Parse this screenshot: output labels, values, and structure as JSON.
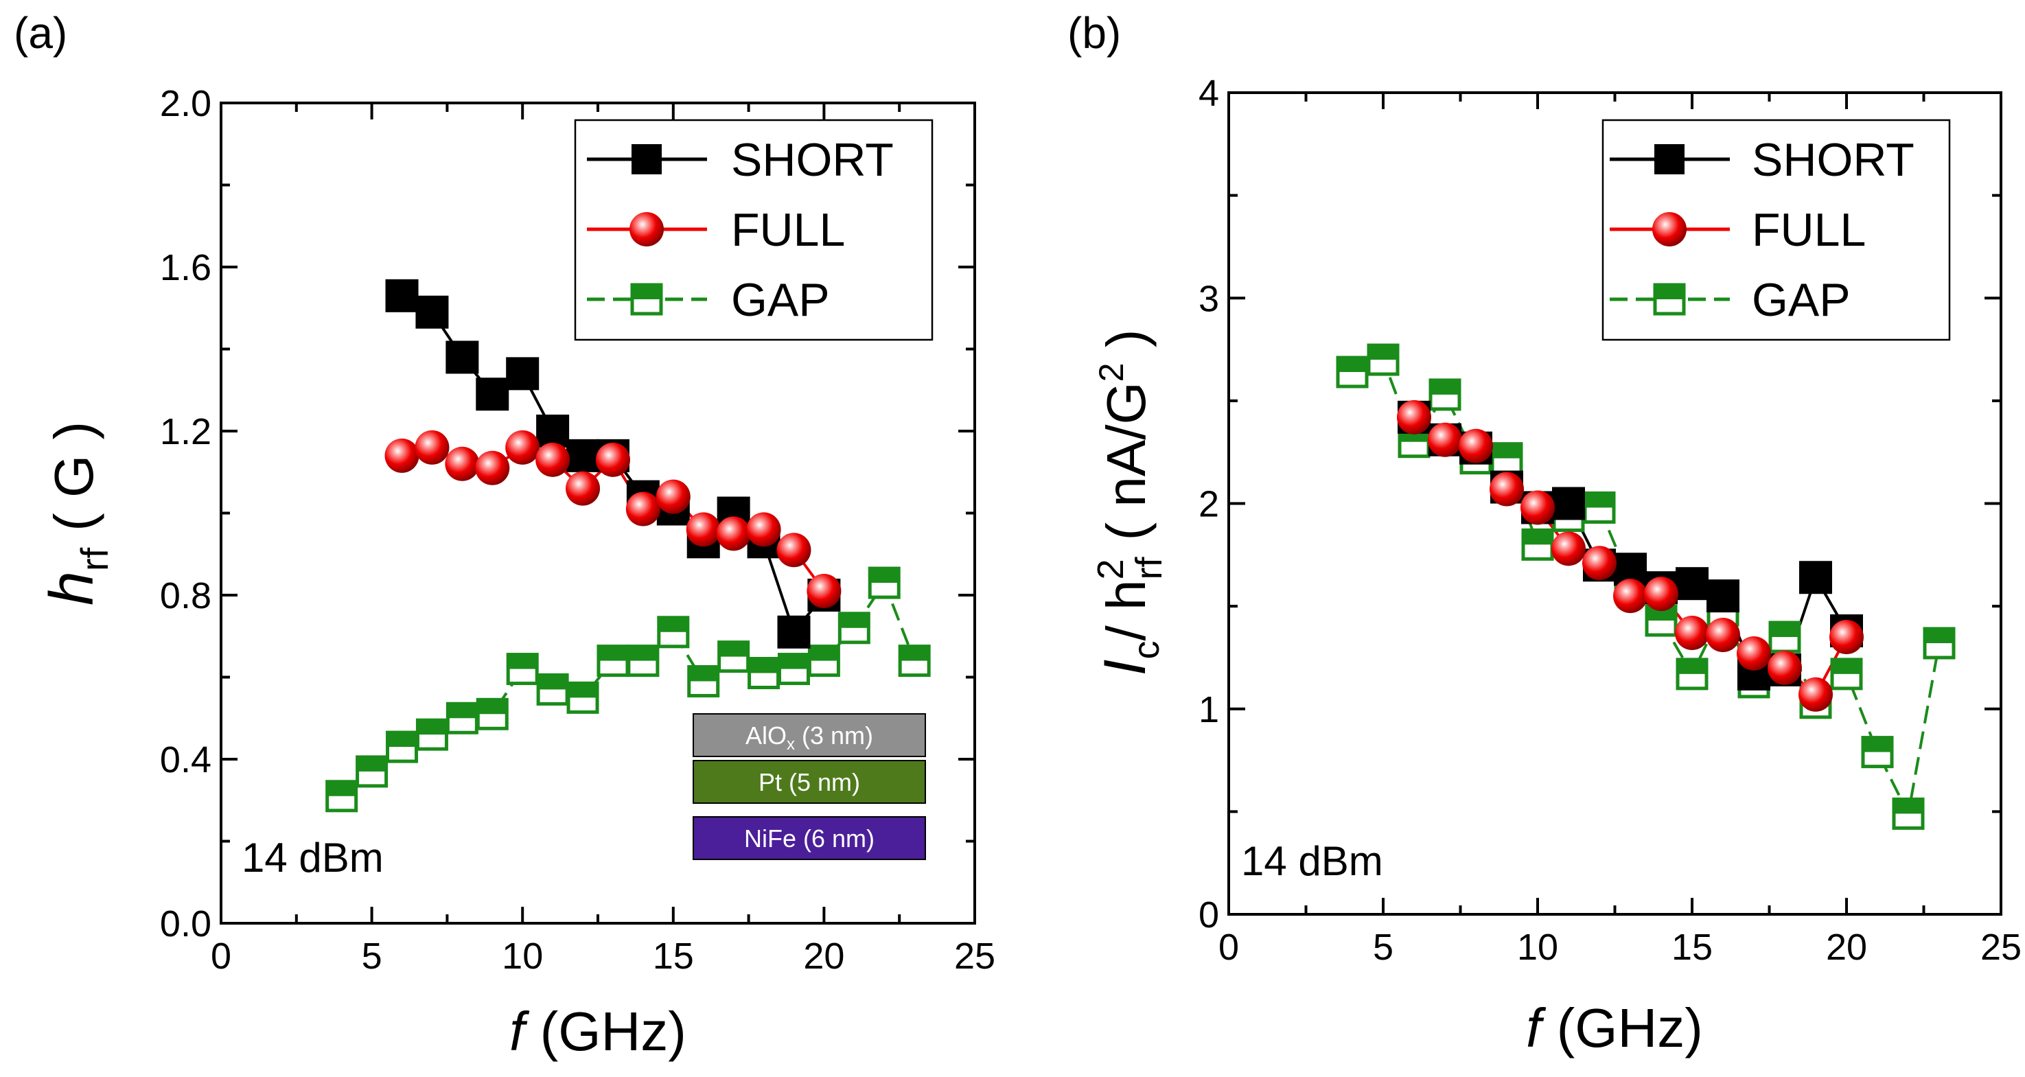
{
  "colors": {
    "short": "#000000",
    "full": "#ee0000",
    "gap": "#1a8c1a",
    "layer_alox": "#8f8f8f",
    "layer_pt": "#4e7a1c",
    "layer_nife": "#4b1f99"
  },
  "chart_data": [
    {
      "type": "scatter",
      "panel_label": "(a)",
      "xlabel": "f",
      "xlabel_unit": " (GHz)",
      "ylabel_main": "h",
      "ylabel_sub": "rf",
      "ylabel_unit": "( G )",
      "xlim": [
        0,
        25
      ],
      "ylim": [
        0,
        2.0
      ],
      "x_ticks": [
        0,
        5,
        10,
        15,
        20,
        25
      ],
      "x_tick_labels": [
        "0",
        "5",
        "10",
        "15",
        "20",
        "25"
      ],
      "y_ticks": [
        0,
        0.4,
        0.8,
        1.2,
        1.6,
        2.0
      ],
      "y_tick_labels": [
        "0.0",
        "0.4",
        "0.8",
        "1.2",
        "1.6",
        "2.0"
      ],
      "power_label": "14 dBm",
      "legend_position": "top-right",
      "layer_stack": [
        {
          "main": "AlO",
          "sub": "x",
          "rest": " (3 nm)",
          "color_key": "layer_alox"
        },
        {
          "main": "Pt (5 nm)",
          "sub": "",
          "rest": "",
          "color_key": "layer_pt"
        },
        {
          "main": "NiFe (6 nm)",
          "sub": "",
          "rest": "",
          "color_key": "layer_nife"
        }
      ],
      "series": [
        {
          "name": "SHORT",
          "key": "short",
          "x": [
            6,
            7,
            8,
            9,
            10,
            11,
            12,
            13,
            14,
            15,
            16,
            17,
            18,
            19,
            20
          ],
          "y": [
            1.53,
            1.49,
            1.38,
            1.29,
            1.34,
            1.2,
            1.14,
            1.14,
            1.04,
            1.01,
            0.93,
            1.0,
            0.93,
            0.71,
            0.8
          ]
        },
        {
          "name": "FULL",
          "key": "full",
          "x": [
            6,
            7,
            8,
            9,
            10,
            11,
            12,
            13,
            14,
            15,
            16,
            17,
            18,
            19,
            20
          ],
          "y": [
            1.14,
            1.16,
            1.12,
            1.11,
            1.16,
            1.13,
            1.06,
            1.13,
            1.01,
            1.04,
            0.96,
            0.95,
            0.96,
            0.91,
            0.81
          ]
        },
        {
          "name": "GAP",
          "key": "gap",
          "x": [
            4,
            5,
            6,
            7,
            8,
            9,
            10,
            11,
            12,
            13,
            14,
            15,
            16,
            17,
            18,
            19,
            20,
            21,
            22,
            23
          ],
          "y": [
            0.31,
            0.37,
            0.43,
            0.46,
            0.5,
            0.51,
            0.62,
            0.57,
            0.55,
            0.64,
            0.64,
            0.71,
            0.59,
            0.65,
            0.61,
            0.62,
            0.64,
            0.72,
            0.83,
            0.64
          ]
        }
      ]
    },
    {
      "type": "scatter",
      "panel_label": "(b)",
      "xlabel": "f",
      "xlabel_unit": " (GHz)",
      "ylabel_main": "I",
      "ylabel_sub": "c",
      "ylabel_mid": "/ h",
      "ylabel_sup2": "2",
      "ylabel_sub2": "rf",
      "ylabel_unit": "( nA/G",
      "ylabel_unit_sup": "2",
      "ylabel_unit_end": " )",
      "xlim": [
        0,
        25
      ],
      "ylim": [
        0,
        4
      ],
      "x_ticks": [
        0,
        5,
        10,
        15,
        20,
        25
      ],
      "x_tick_labels": [
        "0",
        "5",
        "10",
        "15",
        "20",
        "25"
      ],
      "y_ticks": [
        0,
        1,
        2,
        3,
        4
      ],
      "y_tick_labels": [
        "0",
        "1",
        "2",
        "3",
        "4"
      ],
      "power_label": "14 dBm",
      "legend_position": "top-right",
      "series": [
        {
          "name": "SHORT",
          "key": "short",
          "x": [
            6,
            7,
            8,
            9,
            10,
            11,
            12,
            13,
            14,
            15,
            16,
            17,
            18,
            19,
            20
          ],
          "y": [
            2.42,
            2.31,
            2.27,
            2.08,
            1.98,
            2.0,
            1.7,
            1.68,
            1.59,
            1.61,
            1.55,
            1.17,
            1.19,
            1.64,
            1.38
          ]
        },
        {
          "name": "FULL",
          "key": "full",
          "x": [
            6,
            7,
            8,
            9,
            10,
            11,
            12,
            13,
            14,
            15,
            16,
            17,
            18,
            19,
            20
          ],
          "y": [
            2.42,
            2.31,
            2.28,
            2.07,
            1.98,
            1.78,
            1.71,
            1.55,
            1.56,
            1.37,
            1.36,
            1.27,
            1.2,
            1.07,
            1.35
          ]
        },
        {
          "name": "GAP",
          "key": "gap",
          "x": [
            4,
            5,
            6,
            7,
            8,
            9,
            10,
            11,
            12,
            13,
            14,
            15,
            16,
            17,
            18,
            19,
            20,
            21,
            22,
            23
          ],
          "y": [
            2.64,
            2.7,
            2.3,
            2.53,
            2.22,
            2.22,
            1.8,
            1.94,
            1.98,
            1.62,
            1.43,
            1.17,
            1.48,
            1.13,
            1.35,
            1.03,
            1.17,
            0.79,
            0.49,
            1.32
          ]
        }
      ]
    }
  ]
}
